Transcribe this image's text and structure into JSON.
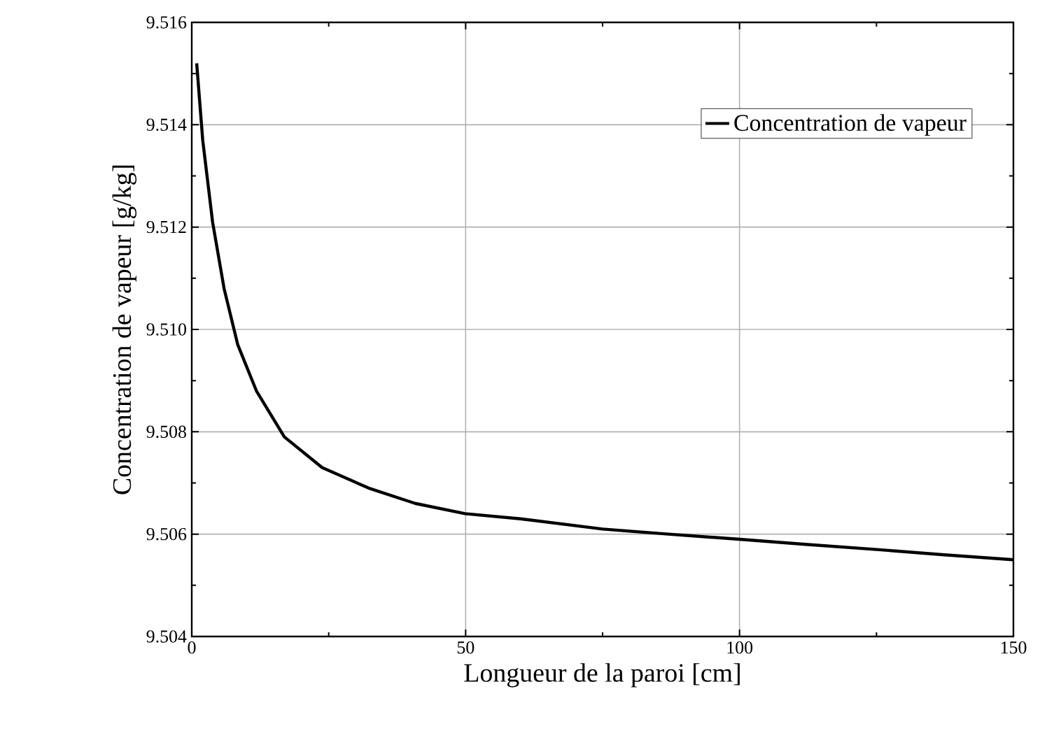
{
  "chart_data": {
    "type": "line",
    "xlabel": "Longueur de la paroi [cm]",
    "ylabel": "Concentration de vapeur [g/kg]",
    "xlim": [
      0,
      150
    ],
    "ylim": [
      9.504,
      9.516
    ],
    "xticks": [
      0,
      50,
      100,
      150
    ],
    "yticks": [
      {
        "value": 9.504,
        "label": "9.504"
      },
      {
        "value": 9.506,
        "label": "9.506"
      },
      {
        "value": 9.508,
        "label": "9.508"
      },
      {
        "value": 9.51,
        "label": "9.510"
      },
      {
        "value": 9.512,
        "label": "9.512"
      },
      {
        "value": 9.514,
        "label": "9.514"
      },
      {
        "value": 9.516,
        "label": "9.516"
      }
    ],
    "grid": true,
    "legend": "top right",
    "series": [
      {
        "name": "Concentration de vapeur",
        "color": "#000000",
        "x": [
          0.9,
          2,
          3.8,
          5.9,
          8.4,
          11.8,
          16.9,
          23.8,
          32.3,
          40.8,
          49.9,
          60,
          75,
          87,
          100,
          112,
          125,
          137,
          150
        ],
        "values": [
          9.5152,
          9.5137,
          9.5121,
          9.5108,
          9.5097,
          9.5088,
          9.5079,
          9.5073,
          9.5069,
          9.5066,
          9.5064,
          9.5063,
          9.5061,
          9.506,
          9.5059,
          9.5058,
          9.5057,
          9.5056,
          9.5055
        ]
      }
    ]
  }
}
